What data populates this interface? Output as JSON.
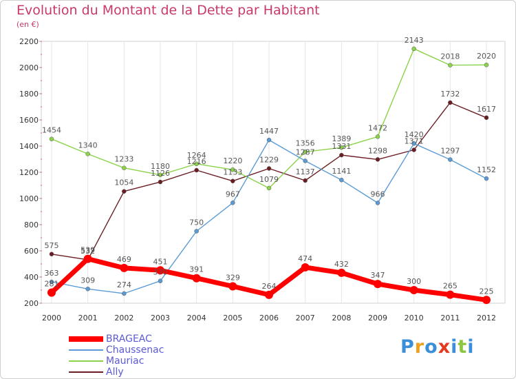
{
  "title": "Evolution du Montant de la Dette par Habitant",
  "subtitle": "(en €)",
  "brand": {
    "letters": [
      "P",
      "r",
      "o",
      "x",
      "i",
      "t",
      "i"
    ],
    "colors": [
      "#3a8fd8",
      "#f0a020",
      "#3a8fd8",
      "#e23b1f",
      "#3a8fd8",
      "#8cc63f",
      "#3a8fd8"
    ]
  },
  "chart_data": {
    "type": "line",
    "x": [
      "2000",
      "2001",
      "2002",
      "2003",
      "2004",
      "2005",
      "2006",
      "2007",
      "2008",
      "2009",
      "2010",
      "2011",
      "2012"
    ],
    "ylim": [
      200,
      2200
    ],
    "yticks": [
      "200",
      "400",
      "600",
      "800",
      "1000",
      "1200",
      "1400",
      "1600",
      "1800",
      "2000",
      "2200"
    ],
    "grid": "vertical",
    "legend_position": "bottom-left",
    "series": [
      {
        "name": "BRAGEAC",
        "color": "#ff0000",
        "values": [
          281,
          539,
          469,
          451,
          391,
          329,
          264,
          474,
          432,
          347,
          300,
          265,
          225
        ],
        "labels": [
          "281",
          "539",
          "469",
          "451",
          "391",
          "329",
          "264",
          "474",
          "432",
          "347",
          "300",
          "265",
          "225"
        ]
      },
      {
        "name": "Chaussenac",
        "color": "#5b9bd5",
        "values": [
          363,
          309,
          274,
          370,
          750,
          967,
          1447,
          1287,
          1141,
          966,
          1420,
          1297,
          1152
        ],
        "labels": [
          "363",
          "309",
          "274",
          "370",
          "750",
          "967",
          "1447",
          "1287",
          "1141",
          "966",
          "1420",
          "1297",
          "1152"
        ]
      },
      {
        "name": "Mauriac",
        "color": "#8cd24a",
        "values": [
          1454,
          1340,
          1233,
          1180,
          1264,
          1220,
          1079,
          1356,
          1389,
          1472,
          2143,
          2018,
          2020
        ],
        "labels": [
          "1454",
          "1340",
          "1233",
          "1180",
          "1264",
          "1220",
          "1079",
          "1356",
          "1389",
          "1472",
          "2143",
          "2018",
          "2020"
        ]
      },
      {
        "name": "Ally",
        "color": "#6b1d24",
        "values": [
          575,
          532,
          1054,
          1126,
          1216,
          1133,
          1229,
          1137,
          1331,
          1298,
          1371,
          1732,
          1617
        ],
        "labels": [
          "575",
          "532",
          "1054",
          "1126",
          "1216",
          "1133",
          "1229",
          "1137",
          "1331",
          "1298",
          "1371",
          "1732",
          "1617"
        ]
      }
    ]
  }
}
